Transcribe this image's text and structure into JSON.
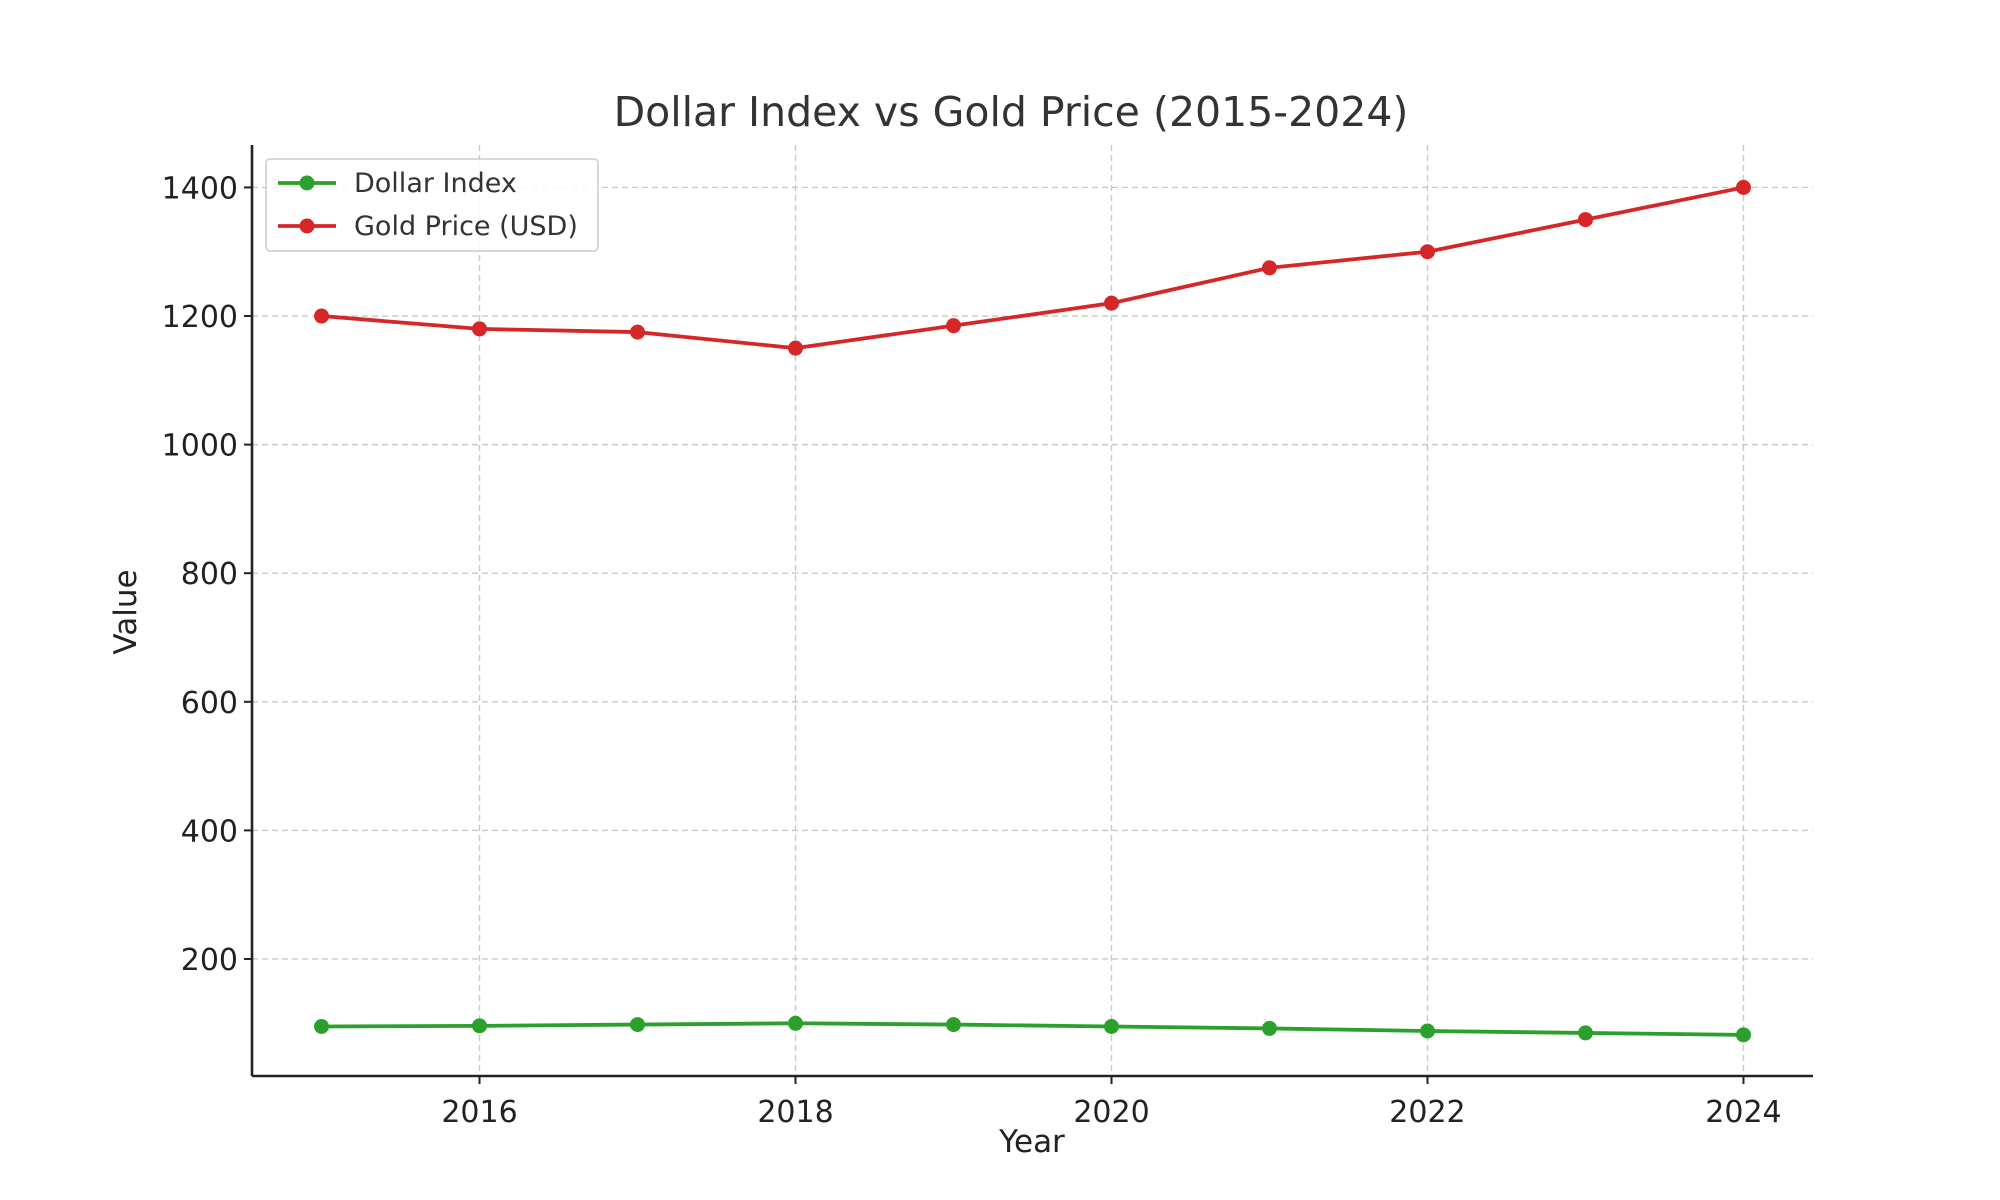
{
  "chart_data": {
    "type": "line",
    "title": "Dollar Index vs Gold Price (2015-2024)",
    "xlabel": "Year",
    "ylabel": "Value",
    "x": [
      2015,
      2016,
      2017,
      2018,
      2019,
      2020,
      2021,
      2022,
      2023,
      2024
    ],
    "xlim": [
      2014.56,
      2024.44
    ],
    "ylim": [
      18,
      1466
    ],
    "x_ticks": [
      2016,
      2018,
      2020,
      2022,
      2024
    ],
    "y_ticks": [
      200,
      400,
      600,
      800,
      1000,
      1200,
      1400
    ],
    "grid": true,
    "legend_position": "top-left",
    "series": [
      {
        "name": "Dollar Index",
        "color": "#2ca02c",
        "values": [
          95,
          96,
          98,
          100,
          98,
          95,
          92,
          88,
          85,
          82
        ]
      },
      {
        "name": "Gold Price (USD)",
        "color": "#d62728",
        "values": [
          1200,
          1180,
          1175,
          1150,
          1185,
          1220,
          1275,
          1300,
          1350,
          1400
        ]
      }
    ]
  }
}
